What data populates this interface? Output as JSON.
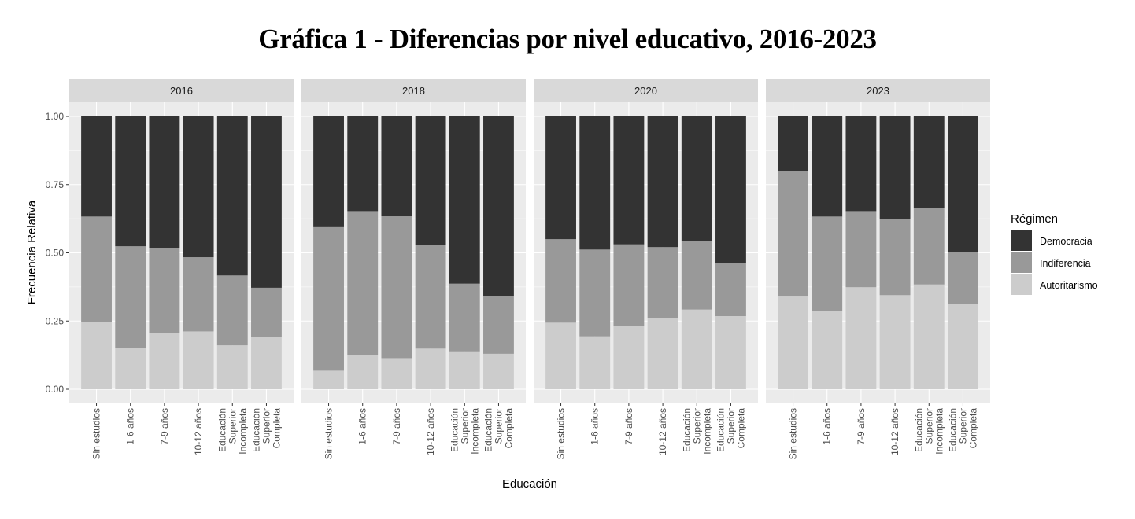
{
  "chart_data": {
    "type": "bar",
    "stacked": true,
    "normalized": true,
    "title": "Gráfica 1 - Diferencias por nivel educativo, 2016-2023",
    "xlabel": "Educación",
    "ylabel": "Frecuencia Relativa",
    "ylim": [
      0,
      1
    ],
    "yticks": [
      "0.00",
      "0.25",
      "0.50",
      "0.75",
      "1.00"
    ],
    "grid": true,
    "legend": {
      "title": "Régimen",
      "placement": "right",
      "entries": [
        {
          "name": "Democracia",
          "color": "#333333"
        },
        {
          "name": "Indiferencia",
          "color": "#999999"
        },
        {
          "name": "Autoritarismo",
          "color": "#cccccc"
        }
      ]
    },
    "categories": [
      [
        "Sin estudios"
      ],
      [
        "1-6 años"
      ],
      [
        "7-9 años"
      ],
      [
        "10-12 años"
      ],
      [
        "Educación",
        "Superior",
        "Incompleta"
      ],
      [
        "Educación",
        "Superior",
        "Completa"
      ]
    ],
    "facets": [
      {
        "label": "2016",
        "series": [
          {
            "name": "Democracia",
            "values": [
              0.367,
              0.476,
              0.484,
              0.516,
              0.583,
              0.628
            ]
          },
          {
            "name": "Indiferencia",
            "values": [
              0.386,
              0.372,
              0.311,
              0.272,
              0.256,
              0.179
            ]
          },
          {
            "name": "Autoritarismo",
            "values": [
              0.247,
              0.152,
              0.205,
              0.212,
              0.161,
              0.193
            ]
          }
        ]
      },
      {
        "label": "2018",
        "series": [
          {
            "name": "Democracia",
            "values": [
              0.406,
              0.347,
              0.366,
              0.472,
              0.613,
              0.659
            ]
          },
          {
            "name": "Indiferencia",
            "values": [
              0.526,
              0.529,
              0.52,
              0.379,
              0.248,
              0.211
            ]
          },
          {
            "name": "Autoritarismo",
            "values": [
              0.068,
              0.124,
              0.114,
              0.149,
              0.139,
              0.13
            ]
          }
        ]
      },
      {
        "label": "2020",
        "series": [
          {
            "name": "Democracia",
            "values": [
              0.45,
              0.488,
              0.469,
              0.479,
              0.457,
              0.537
            ]
          },
          {
            "name": "Indiferencia",
            "values": [
              0.306,
              0.318,
              0.3,
              0.261,
              0.251,
              0.195
            ]
          },
          {
            "name": "Autoritarismo",
            "values": [
              0.244,
              0.194,
              0.231,
              0.26,
              0.292,
              0.268
            ]
          }
        ]
      },
      {
        "label": "2023",
        "series": [
          {
            "name": "Democracia",
            "values": [
              0.2,
              0.367,
              0.347,
              0.376,
              0.337,
              0.498
            ]
          },
          {
            "name": "Indiferencia",
            "values": [
              0.46,
              0.345,
              0.279,
              0.279,
              0.279,
              0.189
            ]
          },
          {
            "name": "Autoritarismo",
            "values": [
              0.34,
              0.288,
              0.374,
              0.345,
              0.384,
              0.313
            ]
          }
        ]
      }
    ]
  }
}
